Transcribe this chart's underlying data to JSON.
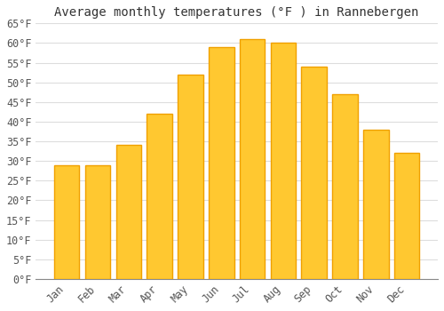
{
  "title": "Average monthly temperatures (°F ) in Rannebergen",
  "months": [
    "Jan",
    "Feb",
    "Mar",
    "Apr",
    "May",
    "Jun",
    "Jul",
    "Aug",
    "Sep",
    "Oct",
    "Nov",
    "Dec"
  ],
  "values": [
    29,
    29,
    34,
    42,
    52,
    59,
    61,
    60,
    54,
    47,
    38,
    32
  ],
  "bar_color_center": "#FFC830",
  "bar_color_edge": "#F0A000",
  "background_color": "#FFFFFF",
  "grid_color": "#DDDDDD",
  "ylim": [
    0,
    65
  ],
  "yticks": [
    0,
    5,
    10,
    15,
    20,
    25,
    30,
    35,
    40,
    45,
    50,
    55,
    60,
    65
  ],
  "ylabel_suffix": "°F",
  "title_fontsize": 10,
  "tick_fontsize": 8.5,
  "font_family": "monospace",
  "bar_width": 0.82,
  "figsize": [
    5.0,
    3.5
  ],
  "dpi": 100
}
